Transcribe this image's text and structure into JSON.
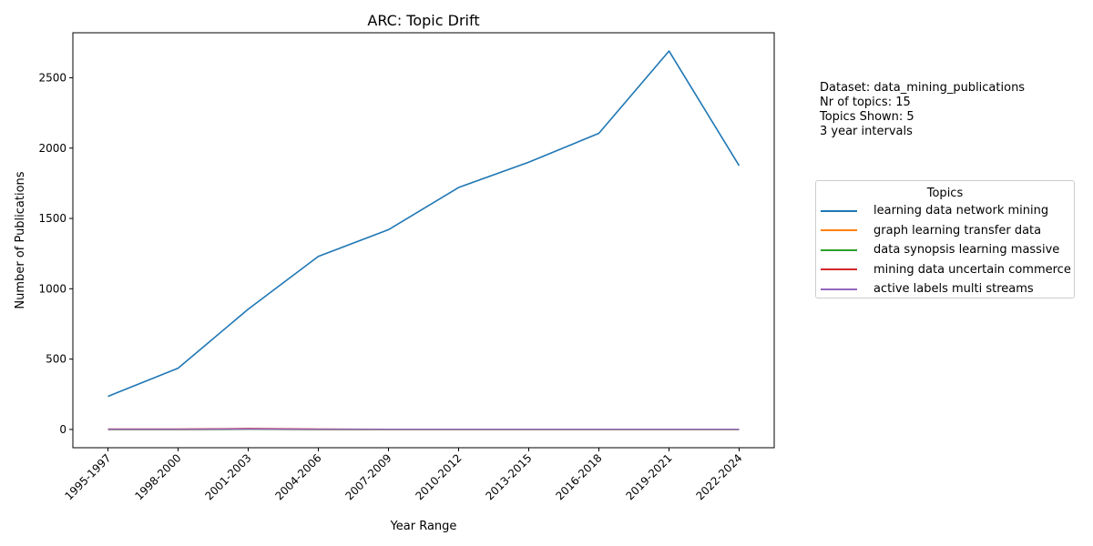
{
  "chart_data": {
    "type": "line",
    "title": "ARC: Topic Drift",
    "xlabel": "Year Range",
    "ylabel": "Number of Publications",
    "categories": [
      "1995-1997",
      "1998-2000",
      "2001-2003",
      "2004-2006",
      "2007-2009",
      "2010-2012",
      "2013-2015",
      "2016-2018",
      "2019-2021",
      "2022-2024"
    ],
    "yticks": [
      0,
      500,
      1000,
      1500,
      2000,
      2500
    ],
    "ylim": [
      -130,
      2820
    ],
    "grid": false,
    "legend_title": "Topics",
    "legend_placement": "right",
    "series": [
      {
        "name": "learning data network mining",
        "color": "#1f77b4",
        "values": [
          235,
          435,
          855,
          1230,
          1420,
          1720,
          1900,
          2105,
          2690,
          1875
        ]
      },
      {
        "name": "graph learning transfer data",
        "color": "#ff7f0e",
        "values": [
          0,
          0,
          2,
          0,
          0,
          0,
          0,
          0,
          0,
          0
        ]
      },
      {
        "name": "data synopsis learning massive",
        "color": "#2ca02c",
        "values": [
          0,
          0,
          1,
          0,
          0,
          0,
          0,
          0,
          0,
          0
        ]
      },
      {
        "name": "mining data uncertain commerce",
        "color": "#d62728",
        "values": [
          2,
          2,
          6,
          2,
          1,
          1,
          1,
          1,
          1,
          1
        ]
      },
      {
        "name": "active labels multi streams",
        "color": "#9467bd",
        "values": [
          1,
          1,
          3,
          1,
          1,
          1,
          1,
          1,
          1,
          1
        ]
      }
    ]
  },
  "info": {
    "dataset": "Dataset: data_mining_publications",
    "nr_topics": "Nr of topics: 15",
    "topics_shown": "Topics Shown: 5",
    "intervals": "3 year intervals"
  }
}
